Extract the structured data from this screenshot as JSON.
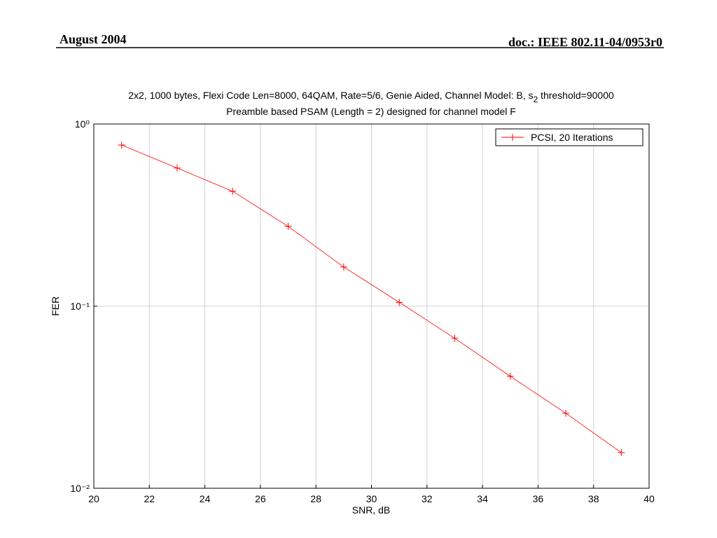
{
  "header": {
    "left": "August 2004",
    "right": "doc.: IEEE 802.11-04/0953r0"
  },
  "chart_data": {
    "type": "line",
    "title": [
      "2x2, 1000 bytes, Flexi Code Len=8000, 64QAM, Rate=5/6, Genie Aided, Channel Model: B, s",
      "2",
      " threshold=90000"
    ],
    "subtitle": "Preamble based PSAM (Length = 2) designed for channel model F",
    "xlabel": "SNR, dB",
    "ylabel": "FER",
    "x": [
      21,
      23,
      25,
      27,
      29,
      31,
      33,
      35,
      37,
      39
    ],
    "series": [
      {
        "name": "PCSI, 20 Iterations",
        "color": "#ff0000",
        "marker": "+",
        "values": [
          0.767,
          0.573,
          0.427,
          0.274,
          0.164,
          0.105,
          0.0666,
          0.0412,
          0.0258,
          0.0157
        ]
      }
    ],
    "xlim": [
      20,
      40
    ],
    "xticks": [
      20,
      22,
      24,
      26,
      28,
      30,
      32,
      34,
      36,
      38,
      40
    ],
    "ylim": [
      0.01,
      1
    ],
    "yscale": "log",
    "yticks": [
      {
        "value": 0.01,
        "label": "10⁻²"
      },
      {
        "value": 0.1,
        "label": "10⁻¹"
      },
      {
        "value": 1,
        "label": "10⁰"
      }
    ],
    "grid": true,
    "legend": "northeast"
  }
}
